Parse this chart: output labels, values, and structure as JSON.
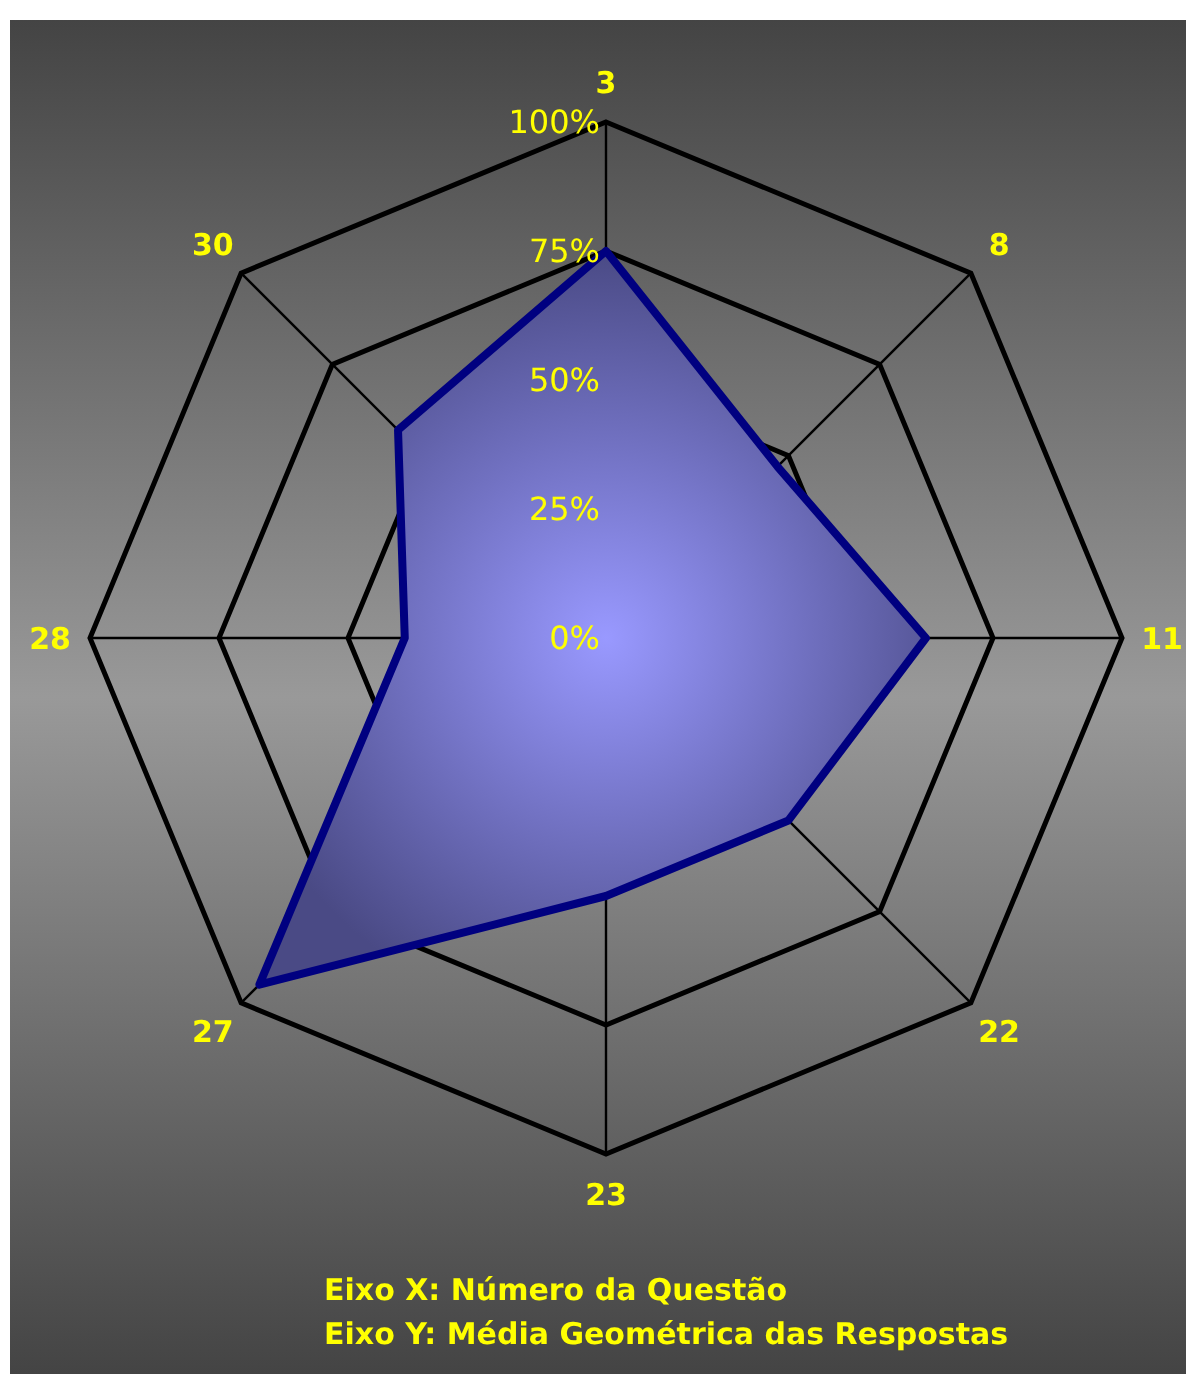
{
  "chart_data": {
    "type": "radar",
    "categories": [
      "3",
      "8",
      "11",
      "22",
      "23",
      "27",
      "28",
      "30"
    ],
    "series": [
      {
        "color": "#000080",
        "values": [
          75,
          47,
          62,
          50,
          50,
          95,
          39,
          57
        ]
      }
    ],
    "ylim": [
      0,
      100
    ],
    "yticks": [
      {
        "value": 0,
        "label": "0%"
      },
      {
        "value": 25,
        "label": "25%"
      },
      {
        "value": 50,
        "label": "50%"
      },
      {
        "value": 75,
        "label": "75%"
      },
      {
        "value": 100,
        "label": "100%"
      }
    ],
    "grid": true,
    "annotations": [
      "Eixo X: Número da Questão",
      "Eixo Y: Média Geométrica das Respostas"
    ]
  }
}
